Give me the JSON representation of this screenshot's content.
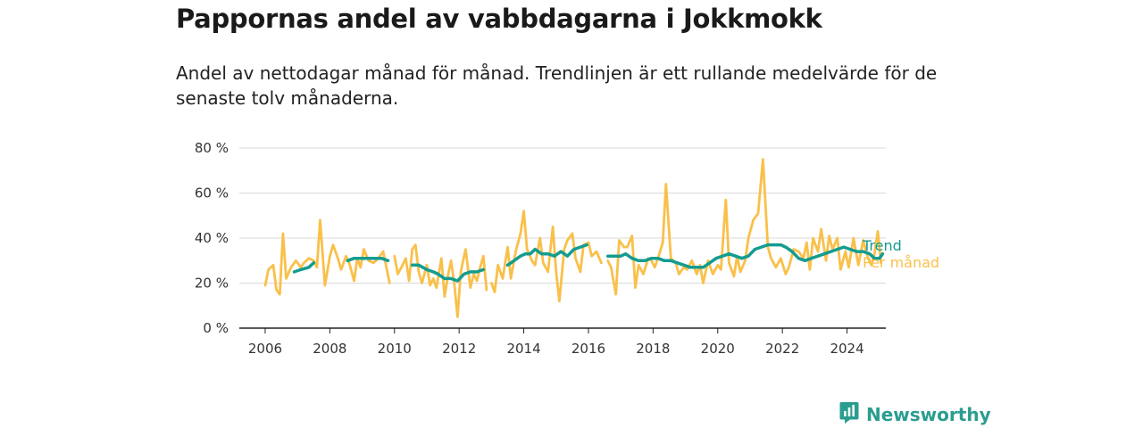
{
  "header": {
    "title": "Pappornas andel av vabbdagarna i Jokkmokk",
    "subtitle": "Andel av nettodagar månad för månad. Trendlinjen är ett rullande medelvärde för de senaste tolv månaderna."
  },
  "brand": {
    "name": "Newsworthy",
    "icon": "newsworthy-logo-icon"
  },
  "colors": {
    "trend": "#149c8f",
    "monthly": "#f9c04a",
    "grid": "#d9d9d9",
    "axis": "#222222"
  },
  "chart_data": {
    "type": "line",
    "title": "Pappornas andel av vabbdagarna i Jokkmokk",
    "ylabel": "",
    "xlabel": "",
    "ylim": [
      0,
      80
    ],
    "xlim": [
      2005.2,
      2025.2
    ],
    "y_ticks": [
      0,
      20,
      40,
      60,
      80
    ],
    "y_tick_labels": [
      "0 %",
      "20 %",
      "40 %",
      "60 %",
      "80 %"
    ],
    "x_ticks": [
      2006,
      2008,
      2010,
      2012,
      2014,
      2016,
      2018,
      2020,
      2022,
      2024
    ],
    "x_tick_labels": [
      "2006",
      "2008",
      "2010",
      "2012",
      "2014",
      "2016",
      "2018",
      "2020",
      "2022",
      "2024"
    ],
    "grid": true,
    "legend": "direct labels at right end of lines",
    "series": [
      {
        "name": "Per månad",
        "color": "#f9c04a",
        "points": [
          [
            2006.0,
            19
          ],
          [
            2006.1,
            26
          ],
          [
            2006.25,
            28
          ],
          [
            2006.35,
            17
          ],
          [
            2006.45,
            15
          ],
          [
            2006.55,
            42
          ],
          [
            2006.65,
            22
          ],
          [
            2006.8,
            27
          ],
          [
            2006.95,
            30
          ],
          [
            2007.1,
            27
          ],
          [
            2007.2,
            29
          ],
          [
            2007.35,
            31
          ],
          [
            2007.5,
            30
          ],
          [
            2007.6,
            27
          ],
          [
            2007.7,
            48
          ],
          [
            2007.85,
            19
          ],
          [
            2008.0,
            32
          ],
          [
            2008.1,
            37
          ],
          [
            2008.25,
            31
          ],
          [
            2008.35,
            26
          ],
          [
            2008.5,
            32
          ],
          [
            2008.6,
            29
          ],
          [
            2008.75,
            21
          ],
          [
            2008.85,
            31
          ],
          [
            2008.95,
            27
          ],
          [
            2009.05,
            35
          ],
          [
            2009.2,
            30
          ],
          [
            2009.35,
            29
          ],
          [
            2009.5,
            31
          ],
          [
            2009.65,
            34
          ],
          [
            2009.75,
            27
          ],
          [
            2009.85,
            20
          ],
          null,
          [
            2010.0,
            32
          ],
          [
            2010.1,
            24
          ],
          [
            2010.25,
            28
          ],
          [
            2010.35,
            31
          ],
          [
            2010.45,
            21
          ],
          [
            2010.55,
            35
          ],
          [
            2010.65,
            37
          ],
          [
            2010.75,
            25
          ],
          [
            2010.85,
            20
          ],
          [
            2011.0,
            28
          ],
          [
            2011.1,
            19
          ],
          [
            2011.2,
            22
          ],
          [
            2011.3,
            18
          ],
          [
            2011.45,
            31
          ],
          [
            2011.55,
            14
          ],
          [
            2011.65,
            23
          ],
          [
            2011.75,
            30
          ],
          [
            2011.85,
            20
          ],
          [
            2011.95,
            5
          ],
          [
            2012.05,
            25
          ],
          [
            2012.2,
            35
          ],
          [
            2012.35,
            18
          ],
          [
            2012.45,
            24
          ],
          [
            2012.55,
            21
          ],
          [
            2012.65,
            27
          ],
          [
            2012.75,
            32
          ],
          [
            2012.85,
            17
          ],
          null,
          [
            2013.0,
            20
          ],
          [
            2013.1,
            16
          ],
          [
            2013.2,
            28
          ],
          [
            2013.35,
            22
          ],
          [
            2013.5,
            36
          ],
          [
            2013.6,
            22
          ],
          [
            2013.75,
            34
          ],
          [
            2013.9,
            42
          ],
          [
            2014.0,
            52
          ],
          [
            2014.1,
            35
          ],
          [
            2014.25,
            30
          ],
          [
            2014.35,
            28
          ],
          [
            2014.5,
            40
          ],
          [
            2014.6,
            29
          ],
          [
            2014.75,
            25
          ],
          [
            2014.9,
            45
          ],
          [
            2015.0,
            25
          ],
          [
            2015.1,
            12
          ],
          [
            2015.25,
            35
          ],
          [
            2015.35,
            39
          ],
          [
            2015.5,
            42
          ],
          [
            2015.6,
            31
          ],
          [
            2015.75,
            25
          ],
          [
            2015.85,
            37
          ],
          [
            2016.0,
            38
          ],
          [
            2016.1,
            32
          ],
          [
            2016.25,
            34
          ],
          [
            2016.4,
            29
          ],
          null,
          [
            2016.6,
            30
          ],
          [
            2016.7,
            27
          ],
          [
            2016.85,
            15
          ],
          [
            2016.95,
            39
          ],
          [
            2017.1,
            36
          ],
          [
            2017.2,
            36
          ],
          [
            2017.35,
            41
          ],
          [
            2017.45,
            18
          ],
          [
            2017.55,
            28
          ],
          [
            2017.7,
            24
          ],
          [
            2017.85,
            31
          ],
          [
            2017.95,
            30
          ],
          [
            2018.05,
            27
          ],
          [
            2018.15,
            31
          ],
          [
            2018.3,
            38
          ],
          [
            2018.4,
            64
          ],
          [
            2018.55,
            31
          ],
          [
            2018.7,
            29
          ],
          [
            2018.8,
            24
          ],
          [
            2018.95,
            27
          ],
          [
            2019.05,
            26
          ],
          [
            2019.2,
            30
          ],
          [
            2019.35,
            24
          ],
          [
            2019.45,
            28
          ],
          [
            2019.55,
            20
          ],
          [
            2019.7,
            30
          ],
          [
            2019.85,
            24
          ],
          [
            2020.0,
            28
          ],
          [
            2020.1,
            26
          ],
          [
            2020.25,
            57
          ],
          [
            2020.35,
            29
          ],
          [
            2020.5,
            23
          ],
          [
            2020.6,
            32
          ],
          [
            2020.7,
            25
          ],
          [
            2020.85,
            30
          ],
          [
            2020.95,
            40
          ],
          [
            2021.1,
            48
          ],
          [
            2021.25,
            51
          ],
          [
            2021.4,
            75
          ],
          [
            2021.55,
            36
          ],
          [
            2021.65,
            31
          ],
          [
            2021.8,
            27
          ],
          [
            2021.95,
            31
          ],
          [
            2022.1,
            24
          ],
          [
            2022.2,
            27
          ],
          [
            2022.35,
            35
          ],
          [
            2022.5,
            34
          ],
          [
            2022.65,
            31
          ],
          [
            2022.75,
            38
          ],
          [
            2022.85,
            26
          ],
          [
            2022.95,
            40
          ],
          [
            2023.1,
            34
          ],
          [
            2023.2,
            44
          ],
          [
            2023.35,
            30
          ],
          [
            2023.45,
            41
          ],
          [
            2023.55,
            35
          ],
          [
            2023.7,
            40
          ],
          [
            2023.8,
            26
          ],
          [
            2023.95,
            34
          ],
          [
            2024.05,
            27
          ],
          [
            2024.2,
            40
          ],
          [
            2024.35,
            28
          ],
          [
            2024.5,
            39
          ],
          [
            2024.65,
            31
          ],
          [
            2024.75,
            28
          ],
          [
            2024.85,
            33
          ],
          [
            2024.95,
            43
          ],
          [
            2025.05,
            29
          ]
        ]
      },
      {
        "name": "Trend",
        "color": "#149c8f",
        "points": [
          [
            2006.9,
            25
          ],
          [
            2007.1,
            26
          ],
          [
            2007.35,
            27
          ],
          [
            2007.5,
            29
          ],
          null,
          [
            2008.55,
            30
          ],
          [
            2008.75,
            31
          ],
          [
            2009.0,
            31
          ],
          [
            2009.3,
            31
          ],
          [
            2009.6,
            31
          ],
          [
            2009.8,
            30
          ],
          null,
          [
            2010.55,
            28
          ],
          [
            2010.75,
            28
          ],
          [
            2011.0,
            26
          ],
          [
            2011.2,
            25
          ],
          [
            2011.35,
            24
          ],
          [
            2011.55,
            22
          ],
          [
            2011.75,
            22
          ],
          [
            2011.95,
            21
          ],
          [
            2012.15,
            24
          ],
          [
            2012.35,
            25
          ],
          [
            2012.55,
            25
          ],
          [
            2012.75,
            26
          ],
          null,
          [
            2013.5,
            28
          ],
          [
            2013.7,
            30
          ],
          [
            2013.9,
            32
          ],
          [
            2014.05,
            33
          ],
          [
            2014.2,
            33
          ],
          [
            2014.35,
            35
          ],
          [
            2014.55,
            33
          ],
          [
            2014.75,
            33
          ],
          [
            2014.95,
            32
          ],
          [
            2015.15,
            34
          ],
          [
            2015.35,
            32
          ],
          [
            2015.55,
            35
          ],
          [
            2015.75,
            36
          ],
          [
            2015.95,
            37
          ],
          null,
          [
            2016.6,
            32
          ],
          [
            2016.8,
            32
          ],
          [
            2017.0,
            32
          ],
          [
            2017.15,
            33
          ],
          [
            2017.35,
            31
          ],
          [
            2017.55,
            30
          ],
          [
            2017.75,
            30
          ],
          [
            2017.95,
            31
          ],
          [
            2018.15,
            31
          ],
          [
            2018.35,
            30
          ],
          [
            2018.55,
            30
          ],
          [
            2018.75,
            29
          ],
          [
            2018.95,
            28
          ],
          [
            2019.15,
            27
          ],
          [
            2019.35,
            27
          ],
          [
            2019.55,
            27
          ],
          [
            2019.75,
            29
          ],
          [
            2019.95,
            31
          ],
          [
            2020.15,
            32
          ],
          [
            2020.35,
            33
          ],
          [
            2020.55,
            32
          ],
          [
            2020.75,
            31
          ],
          [
            2020.95,
            32
          ],
          [
            2021.15,
            35
          ],
          [
            2021.35,
            36
          ],
          [
            2021.55,
            37
          ],
          [
            2021.75,
            37
          ],
          [
            2021.95,
            37
          ],
          [
            2022.1,
            36
          ],
          [
            2022.3,
            34
          ],
          [
            2022.5,
            31
          ],
          [
            2022.7,
            30
          ],
          [
            2022.9,
            31
          ],
          [
            2023.1,
            32
          ],
          [
            2023.3,
            33
          ],
          [
            2023.5,
            34
          ],
          [
            2023.7,
            35
          ],
          [
            2023.9,
            36
          ],
          [
            2024.1,
            35
          ],
          [
            2024.3,
            34
          ],
          [
            2024.5,
            34
          ],
          [
            2024.7,
            33
          ],
          [
            2024.85,
            31
          ],
          [
            2025.0,
            31
          ],
          [
            2025.1,
            33
          ]
        ]
      }
    ]
  }
}
